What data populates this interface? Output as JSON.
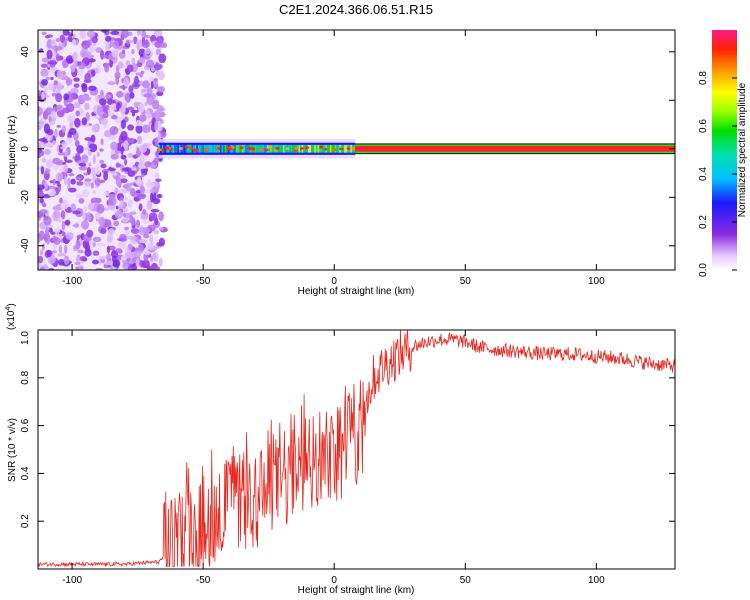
{
  "figure": {
    "title": "C2E1.2024.366.06.51.R15"
  },
  "colors": {
    "snr_line": "#e8261e",
    "axes": "#000000",
    "background": "#ffffff"
  },
  "chart_data": [
    {
      "type": "heatmap",
      "xlabel": "Height of straight line (km)",
      "ylabel": "Frequency (Hz)",
      "xlim": [
        -113,
        130
      ],
      "ylim": [
        -50,
        49
      ],
      "x_ticks": [
        -100,
        -50,
        0,
        50,
        100
      ],
      "x_tick_labels": [
        "-100",
        "-50",
        "0",
        "50",
        "100"
      ],
      "y_ticks": [
        -40,
        -20,
        0,
        20,
        40
      ],
      "y_tick_labels": [
        "-40",
        "-20",
        "0",
        "20",
        "40"
      ],
      "grid": false,
      "colorbar": {
        "label": "Normalized spectral amplitude",
        "range": [
          0,
          1
        ],
        "ticks": [
          0.0,
          0.2,
          0.4,
          0.6,
          0.8
        ],
        "tick_labels": [
          "0.0",
          "0.2",
          "0.4",
          "0.6",
          "0.8"
        ],
        "colormap": "rainbow"
      },
      "regions": [
        {
          "x_range": [
            -113,
            -67
          ],
          "description": "broadband noise",
          "amplitude": 0.15
        },
        {
          "x_range": [
            -67,
            8
          ],
          "center_hz": 0,
          "half_width_hz": 2.5,
          "amplitude": 0.55
        },
        {
          "x_range": [
            8,
            130
          ],
          "center_hz": 0,
          "half_width_hz": 1.5,
          "amplitude": 0.95
        }
      ]
    },
    {
      "type": "line",
      "xlabel": "Height of straight line (km)",
      "ylabel": "SNR (10 * v/v)",
      "y_multiplier": "(x10^4)",
      "y_multiplier_base": "(x10",
      "y_multiplier_exp": "4",
      "xlim": [
        -113,
        130
      ],
      "ylim": [
        0,
        1.0
      ],
      "x_ticks": [
        -100,
        -50,
        0,
        50,
        100
      ],
      "x_tick_labels": [
        "-100",
        "-50",
        "0",
        "50",
        "100"
      ],
      "y_ticks": [
        0.2,
        0.4,
        0.6,
        0.8,
        1.0
      ],
      "y_tick_labels": [
        "0.2",
        "0.4",
        "0.6",
        "0.8",
        "1.0"
      ],
      "grid": false,
      "series": [
        {
          "color": "#e8261e",
          "x": [
            -113,
            -100,
            -80,
            -67,
            -62,
            -58,
            -55,
            -50,
            -45,
            -40,
            -35,
            -30,
            -25,
            -20,
            -15,
            -10,
            -5,
            0,
            5,
            8,
            10,
            12,
            15,
            20,
            25,
            30,
            35,
            40,
            45,
            50,
            55,
            60,
            70,
            80,
            90,
            100,
            110,
            120,
            130
          ],
          "y": [
            0.02,
            0.02,
            0.02,
            0.03,
            0.08,
            0.15,
            0.18,
            0.2,
            0.24,
            0.27,
            0.28,
            0.3,
            0.34,
            0.38,
            0.42,
            0.45,
            0.47,
            0.5,
            0.52,
            0.55,
            0.6,
            0.7,
            0.8,
            0.86,
            0.9,
            0.93,
            0.95,
            0.96,
            0.96,
            0.95,
            0.93,
            0.92,
            0.91,
            0.9,
            0.9,
            0.89,
            0.88,
            0.86,
            0.85
          ]
        }
      ]
    }
  ]
}
